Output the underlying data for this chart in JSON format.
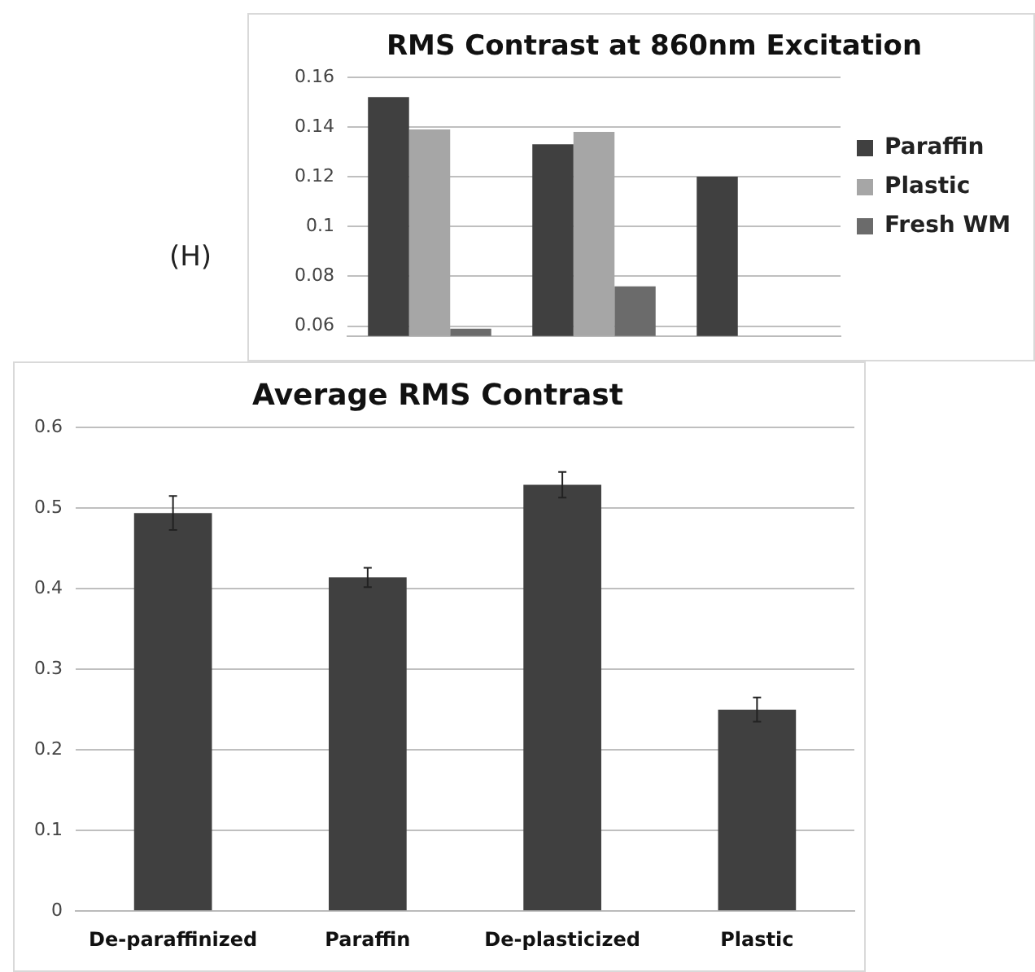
{
  "chart_data": [
    {
      "type": "bar",
      "title": "RMS Contrast at 860nm Excitation",
      "categories": [
        null,
        null,
        null
      ],
      "series": [
        {
          "name": "Paraffin",
          "color": "#404040",
          "values": [
            0.152,
            0.133,
            0.12
          ]
        },
        {
          "name": "Plastic",
          "color": "#a6a6a6",
          "values": [
            0.139,
            0.138,
            null
          ]
        },
        {
          "name": "Fresh WM",
          "color": "#6b6b6b",
          "values": [
            0.059,
            0.076,
            null
          ]
        }
      ],
      "ylim": [
        0.056,
        0.16
      ],
      "yticks": [
        0.06,
        0.08,
        0.1,
        0.12,
        0.14,
        0.16
      ],
      "grid": "y",
      "legend": "right",
      "tick_labels": "y",
      "annotations": [
        "(H)"
      ]
    },
    {
      "type": "bar",
      "title": "Average RMS Contrast",
      "categories": [
        "De-paraffinized",
        "Paraffin",
        "De-plasticized",
        "Plastic"
      ],
      "values": [
        0.494,
        0.414,
        0.529,
        0.25
      ],
      "errors": [
        0.021,
        0.012,
        0.016,
        0.015
      ],
      "color": "#404040",
      "ylim": [
        0,
        0.6
      ],
      "yticks": [
        0,
        0.1,
        0.2,
        0.3,
        0.4,
        0.5,
        0.6
      ],
      "grid": "y"
    }
  ]
}
